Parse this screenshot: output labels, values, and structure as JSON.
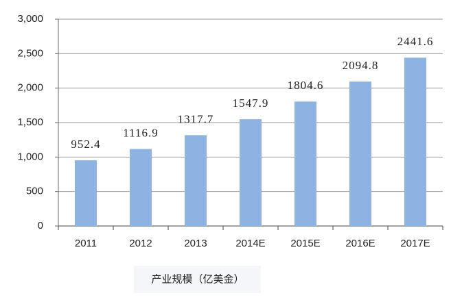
{
  "chart_data": {
    "type": "bar",
    "x_label": "产业规模（亿美金）",
    "categories": [
      "2011",
      "2012",
      "2013",
      "2014E",
      "2015E",
      "2016E",
      "2017E"
    ],
    "values": [
      952.4,
      1116.9,
      1317.7,
      1547.9,
      1804.6,
      2094.8,
      2441.6
    ],
    "color": "#8db3e2",
    "ylim": [
      0,
      3000
    ],
    "yticks": [
      0,
      500,
      {
        "value": 1000,
        "label": "1,000"
      },
      {
        "value": 1500,
        "label": "1,500"
      },
      {
        "value": 2000,
        "label": "2,000"
      },
      {
        "value": 2500,
        "label": "2,500"
      },
      {
        "value": 3000,
        "label": "3,000"
      }
    ],
    "grid": true
  }
}
